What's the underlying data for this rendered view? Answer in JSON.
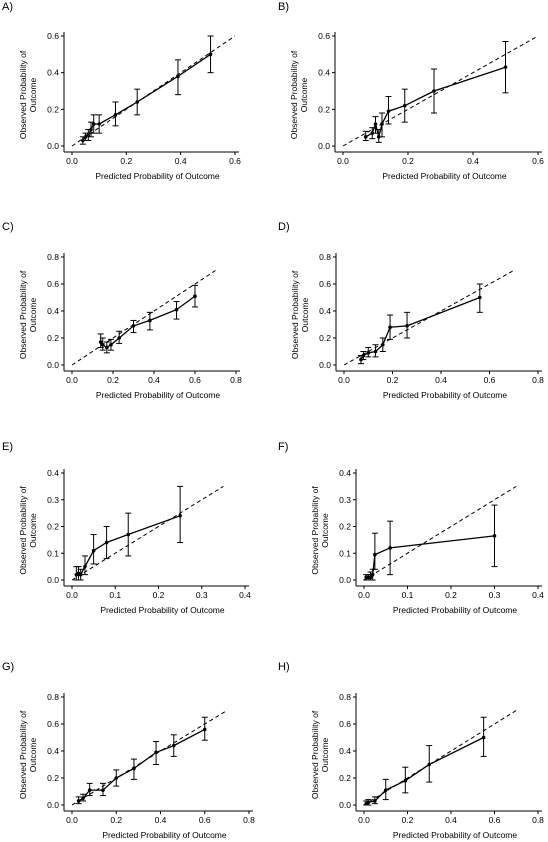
{
  "chart_data": [
    {
      "type": "line",
      "panel": "A)",
      "xlabel": "Predicted Probability of Outcome",
      "ylabel": [
        "Observed Probability of",
        "Outcome"
      ],
      "xlim": [
        0,
        0.6
      ],
      "ylim": [
        0,
        0.6
      ],
      "xticks": [
        "0.0",
        "0.2",
        "0.4",
        "0.6"
      ],
      "yticks": [
        "0.0",
        "0.2",
        "0.4",
        "0.6"
      ],
      "reference_line": "y = x (dashed)",
      "points": [
        {
          "x": 0.04,
          "y": 0.03,
          "lo": 0.01,
          "hi": 0.05
        },
        {
          "x": 0.05,
          "y": 0.05,
          "lo": 0.03,
          "hi": 0.07
        },
        {
          "x": 0.06,
          "y": 0.06,
          "lo": 0.03,
          "hi": 0.09
        },
        {
          "x": 0.07,
          "y": 0.09,
          "lo": 0.05,
          "hi": 0.13
        },
        {
          "x": 0.08,
          "y": 0.12,
          "lo": 0.07,
          "hi": 0.17
        },
        {
          "x": 0.1,
          "y": 0.12,
          "lo": 0.07,
          "hi": 0.17
        },
        {
          "x": 0.16,
          "y": 0.17,
          "lo": 0.11,
          "hi": 0.24
        },
        {
          "x": 0.24,
          "y": 0.24,
          "lo": 0.17,
          "hi": 0.31
        },
        {
          "x": 0.39,
          "y": 0.38,
          "lo": 0.28,
          "hi": 0.47
        },
        {
          "x": 0.51,
          "y": 0.5,
          "lo": 0.4,
          "hi": 0.6
        }
      ]
    },
    {
      "type": "line",
      "panel": "B)",
      "xlabel": "Predicted Probability of Outcome",
      "ylabel": [
        "Observed Probability of",
        "Outcome"
      ],
      "xlim": [
        0,
        0.6
      ],
      "ylim": [
        0,
        0.6
      ],
      "xticks": [
        "0.0",
        "0.2",
        "0.4",
        "0.6"
      ],
      "yticks": [
        "0.0",
        "0.2",
        "0.4",
        "0.6"
      ],
      "reference_line": "y = x (dashed)",
      "points": [
        {
          "x": 0.07,
          "y": 0.05,
          "lo": 0.03,
          "hi": 0.08
        },
        {
          "x": 0.09,
          "y": 0.07,
          "lo": 0.04,
          "hi": 0.1
        },
        {
          "x": 0.1,
          "y": 0.12,
          "lo": 0.07,
          "hi": 0.16
        },
        {
          "x": 0.11,
          "y": 0.05,
          "lo": 0.02,
          "hi": 0.09
        },
        {
          "x": 0.12,
          "y": 0.12,
          "lo": 0.05,
          "hi": 0.18
        },
        {
          "x": 0.14,
          "y": 0.19,
          "lo": 0.12,
          "hi": 0.27
        },
        {
          "x": 0.19,
          "y": 0.22,
          "lo": 0.13,
          "hi": 0.31
        },
        {
          "x": 0.28,
          "y": 0.3,
          "lo": 0.18,
          "hi": 0.42
        },
        {
          "x": 0.5,
          "y": 0.43,
          "lo": 0.29,
          "hi": 0.57
        }
      ]
    },
    {
      "type": "line",
      "panel": "C)",
      "xlabel": "Predicted Probability of Outcome",
      "ylabel": [
        "Observed Probability of",
        "Outcome"
      ],
      "xlim": [
        0,
        0.8
      ],
      "ylim": [
        0,
        0.8
      ],
      "xticks": [
        "0.0",
        "0.2",
        "0.4",
        "0.6",
        "0.8"
      ],
      "yticks": [
        "0.0",
        "0.2",
        "0.4",
        "0.6",
        "0.8"
      ],
      "reference_line": "y = x (dashed)",
      "points": [
        {
          "x": 0.14,
          "y": 0.17,
          "lo": 0.13,
          "hi": 0.23
        },
        {
          "x": 0.15,
          "y": 0.15,
          "lo": 0.11,
          "hi": 0.2
        },
        {
          "x": 0.17,
          "y": 0.13,
          "lo": 0.09,
          "hi": 0.17
        },
        {
          "x": 0.19,
          "y": 0.15,
          "lo": 0.11,
          "hi": 0.19
        },
        {
          "x": 0.23,
          "y": 0.2,
          "lo": 0.16,
          "hi": 0.25
        },
        {
          "x": 0.3,
          "y": 0.29,
          "lo": 0.24,
          "hi": 0.33
        },
        {
          "x": 0.38,
          "y": 0.33,
          "lo": 0.26,
          "hi": 0.39
        },
        {
          "x": 0.51,
          "y": 0.41,
          "lo": 0.34,
          "hi": 0.47
        },
        {
          "x": 0.6,
          "y": 0.51,
          "lo": 0.43,
          "hi": 0.59
        }
      ]
    },
    {
      "type": "line",
      "panel": "D)",
      "xlabel": "Predicted Probability of Outcome",
      "ylabel": [
        "Observed Probability of",
        "Outcome"
      ],
      "xlim": [
        0,
        0.8
      ],
      "ylim": [
        0,
        0.8
      ],
      "xticks": [
        "0.0",
        "0.2",
        "0.4",
        "0.6",
        "0.8"
      ],
      "yticks": [
        "0.0",
        "0.2",
        "0.4",
        "0.6",
        "0.8"
      ],
      "reference_line": "y = x (dashed)",
      "points": [
        {
          "x": 0.07,
          "y": 0.04,
          "lo": 0.01,
          "hi": 0.07
        },
        {
          "x": 0.08,
          "y": 0.07,
          "lo": 0.04,
          "hi": 0.1
        },
        {
          "x": 0.1,
          "y": 0.09,
          "lo": 0.06,
          "hi": 0.13
        },
        {
          "x": 0.13,
          "y": 0.1,
          "lo": 0.06,
          "hi": 0.15
        },
        {
          "x": 0.16,
          "y": 0.15,
          "lo": 0.1,
          "hi": 0.2
        },
        {
          "x": 0.19,
          "y": 0.28,
          "lo": 0.19,
          "hi": 0.37
        },
        {
          "x": 0.26,
          "y": 0.29,
          "lo": 0.2,
          "hi": 0.39
        },
        {
          "x": 0.56,
          "y": 0.5,
          "lo": 0.39,
          "hi": 0.6
        }
      ]
    },
    {
      "type": "line",
      "panel": "E)",
      "xlabel": "Predicted Probability of Outcome",
      "ylabel": [
        "Observed Probability of",
        "Outcome"
      ],
      "xlim": [
        0,
        0.4
      ],
      "ylim": [
        0,
        0.4
      ],
      "xticks": [
        "0.0",
        "0.1",
        "0.2",
        "0.3",
        "0.4"
      ],
      "yticks": [
        "0.0",
        "0.1",
        "0.2",
        "0.3",
        "0.4"
      ],
      "reference_line": "y = x (dashed)",
      "points": [
        {
          "x": 0.01,
          "y": 0.02,
          "lo": 0.0,
          "hi": 0.05
        },
        {
          "x": 0.015,
          "y": 0.025,
          "lo": 0.0,
          "hi": 0.05
        },
        {
          "x": 0.02,
          "y": 0.02,
          "lo": 0.0,
          "hi": 0.04
        },
        {
          "x": 0.03,
          "y": 0.05,
          "lo": 0.02,
          "hi": 0.09
        },
        {
          "x": 0.05,
          "y": 0.11,
          "lo": 0.06,
          "hi": 0.17
        },
        {
          "x": 0.08,
          "y": 0.14,
          "lo": 0.08,
          "hi": 0.2
        },
        {
          "x": 0.13,
          "y": 0.17,
          "lo": 0.09,
          "hi": 0.25
        },
        {
          "x": 0.25,
          "y": 0.24,
          "lo": 0.14,
          "hi": 0.35
        }
      ]
    },
    {
      "type": "line",
      "panel": "F)",
      "xlabel": "Predicted Probability of Outcome",
      "ylabel": [
        "Observed Probability of",
        "Outcome"
      ],
      "xlim": [
        0,
        0.4
      ],
      "ylim": [
        0,
        0.4
      ],
      "xticks": [
        "0.0",
        "0.1",
        "0.2",
        "0.3",
        "0.4"
      ],
      "yticks": [
        "0.0",
        "0.1",
        "0.2",
        "0.3",
        "0.4"
      ],
      "reference_line": "y = x (dashed)",
      "points": [
        {
          "x": 0.005,
          "y": 0.01,
          "lo": 0.0,
          "hi": 0.02
        },
        {
          "x": 0.01,
          "y": 0.01,
          "lo": 0.0,
          "hi": 0.02
        },
        {
          "x": 0.015,
          "y": 0.01,
          "lo": 0.0,
          "hi": 0.03
        },
        {
          "x": 0.02,
          "y": 0.02,
          "lo": 0.0,
          "hi": 0.04
        },
        {
          "x": 0.025,
          "y": 0.095,
          "lo": 0.04,
          "hi": 0.175
        },
        {
          "x": 0.06,
          "y": 0.12,
          "lo": 0.02,
          "hi": 0.22
        },
        {
          "x": 0.3,
          "y": 0.165,
          "lo": 0.05,
          "hi": 0.28
        }
      ]
    },
    {
      "type": "line",
      "panel": "G)",
      "xlabel": "Predicted Probability of Outcome",
      "ylabel": [
        "Observed Probability of",
        "Outcome"
      ],
      "xlim": [
        0,
        0.8
      ],
      "ylim": [
        0,
        0.8
      ],
      "xticks": [
        "0.0",
        "0.2",
        "0.4",
        "0.6",
        "0.8"
      ],
      "yticks": [
        "0.0",
        "0.2",
        "0.4",
        "0.6",
        "0.8"
      ],
      "reference_line": "y = x (dashed)",
      "points": [
        {
          "x": 0.03,
          "y": 0.03,
          "lo": 0.01,
          "hi": 0.06
        },
        {
          "x": 0.05,
          "y": 0.05,
          "lo": 0.03,
          "hi": 0.08
        },
        {
          "x": 0.08,
          "y": 0.11,
          "lo": 0.07,
          "hi": 0.16
        },
        {
          "x": 0.14,
          "y": 0.11,
          "lo": 0.07,
          "hi": 0.16
        },
        {
          "x": 0.2,
          "y": 0.2,
          "lo": 0.14,
          "hi": 0.26
        },
        {
          "x": 0.28,
          "y": 0.27,
          "lo": 0.19,
          "hi": 0.34
        },
        {
          "x": 0.38,
          "y": 0.39,
          "lo": 0.3,
          "hi": 0.47
        },
        {
          "x": 0.46,
          "y": 0.44,
          "lo": 0.36,
          "hi": 0.52
        },
        {
          "x": 0.6,
          "y": 0.56,
          "lo": 0.48,
          "hi": 0.65
        }
      ]
    },
    {
      "type": "line",
      "panel": "H)",
      "xlabel": "Predicted Probability of Outcome",
      "ylabel": [
        "Observed Probability of",
        "Outcome"
      ],
      "xlim": [
        0,
        0.8
      ],
      "ylim": [
        0,
        0.8
      ],
      "xticks": [
        "0.0",
        "0.2",
        "0.4",
        "0.6",
        "0.8"
      ],
      "yticks": [
        "0.0",
        "0.2",
        "0.4",
        "0.6",
        "0.8"
      ],
      "reference_line": "y = x (dashed)",
      "points": [
        {
          "x": 0.01,
          "y": 0.01,
          "lo": 0.0,
          "hi": 0.03
        },
        {
          "x": 0.02,
          "y": 0.02,
          "lo": 0.0,
          "hi": 0.04
        },
        {
          "x": 0.05,
          "y": 0.03,
          "lo": 0.01,
          "hi": 0.06
        },
        {
          "x": 0.1,
          "y": 0.11,
          "lo": 0.04,
          "hi": 0.19
        },
        {
          "x": 0.19,
          "y": 0.18,
          "lo": 0.09,
          "hi": 0.28
        },
        {
          "x": 0.3,
          "y": 0.3,
          "lo": 0.17,
          "hi": 0.44
        },
        {
          "x": 0.55,
          "y": 0.5,
          "lo": 0.36,
          "hi": 0.65
        }
      ]
    }
  ]
}
